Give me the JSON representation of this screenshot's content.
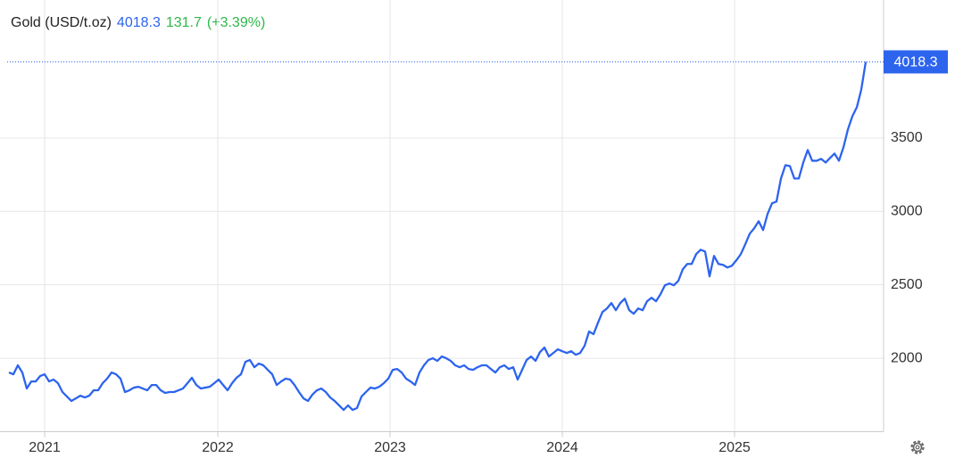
{
  "chart_data": {
    "type": "line",
    "title": "Gold (USD/t.oz)",
    "change": 131.7,
    "change_pct": {
      "value": 3.39,
      "label": "(+3.39%)"
    },
    "color": "#2d64ee",
    "change_color": "#2db84a",
    "ylim": [
      1500,
      4200
    ],
    "yticks": [
      2000,
      2500,
      3000,
      3500
    ],
    "xlim": [
      -0.4,
      196
    ],
    "xticks": [
      {
        "value": 8,
        "label": "2021"
      },
      {
        "value": 46.8,
        "label": "2022"
      },
      {
        "value": 85.4,
        "label": "2023"
      },
      {
        "value": 124,
        "label": "2024"
      },
      {
        "value": 162.6,
        "label": "2025"
      }
    ],
    "grid": true,
    "values": [
      1903,
      1891,
      1952,
      1903,
      1794,
      1842,
      1842,
      1879,
      1891,
      1842,
      1855,
      1830,
      1770,
      1739,
      1709,
      1727,
      1745,
      1733,
      1745,
      1782,
      1782,
      1830,
      1861,
      1903,
      1891,
      1861,
      1770,
      1782,
      1800,
      1806,
      1794,
      1782,
      1818,
      1818,
      1782,
      1764,
      1770,
      1770,
      1782,
      1794,
      1830,
      1867,
      1818,
      1794,
      1800,
      1806,
      1830,
      1855,
      1818,
      1782,
      1830,
      1867,
      1891,
      1976,
      1988,
      1939,
      1964,
      1952,
      1921,
      1891,
      1818,
      1842,
      1861,
      1855,
      1818,
      1770,
      1727,
      1709,
      1752,
      1782,
      1794,
      1770,
      1733,
      1709,
      1679,
      1648,
      1679,
      1648,
      1661,
      1739,
      1770,
      1800,
      1794,
      1806,
      1830,
      1861,
      1921,
      1927,
      1903,
      1861,
      1842,
      1818,
      1903,
      1952,
      1988,
      2000,
      1982,
      2012,
      2000,
      1982,
      1952,
      1939,
      1952,
      1927,
      1921,
      1939,
      1952,
      1952,
      1927,
      1903,
      1939,
      1952,
      1927,
      1939,
      1855,
      1921,
      1988,
      2012,
      1982,
      2042,
      2073,
      2012,
      2036,
      2061,
      2048,
      2036,
      2048,
      2024,
      2036,
      2085,
      2182,
      2164,
      2242,
      2315,
      2339,
      2376,
      2327,
      2376,
      2406,
      2327,
      2303,
      2339,
      2327,
      2388,
      2412,
      2388,
      2436,
      2497,
      2509,
      2497,
      2527,
      2606,
      2642,
      2642,
      2709,
      2739,
      2727,
      2558,
      2697,
      2642,
      2636,
      2618,
      2630,
      2667,
      2709,
      2776,
      2848,
      2885,
      2933,
      2873,
      2982,
      3055,
      3067,
      3224,
      3315,
      3309,
      3224,
      3224,
      3333,
      3418,
      3345,
      3345,
      3358,
      3333,
      3364,
      3394,
      3345,
      3436,
      3558,
      3648,
      3709,
      3830,
      4018.3
    ]
  }
}
